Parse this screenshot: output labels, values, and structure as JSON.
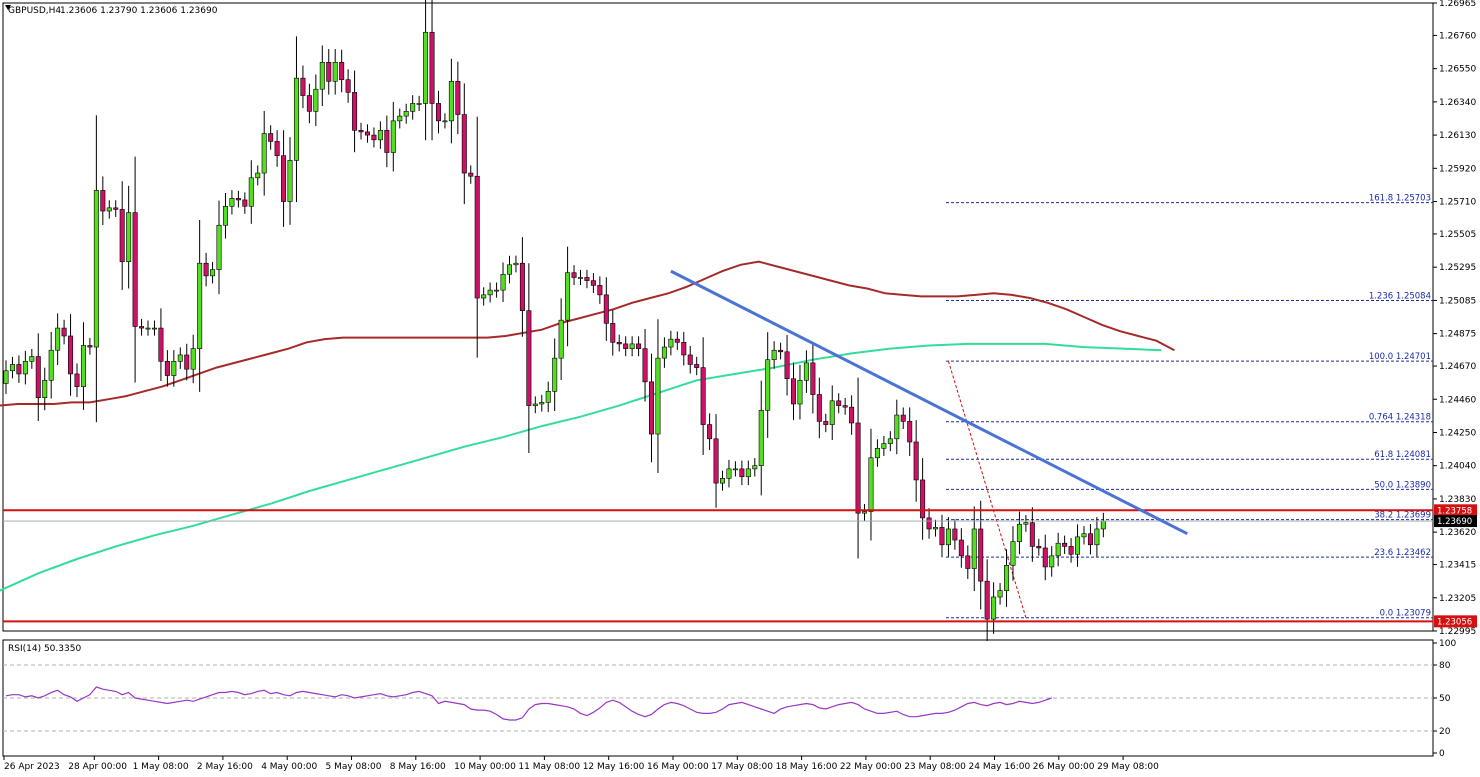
{
  "header": {
    "symbol": "GBPUSD,H4",
    "ohlc": "1.23606 1.23790 1.23606 1.23690",
    "rsi": "RSI(14) 50.3350"
  },
  "colors": {
    "bull": "#55dd22",
    "bear": "#cc1166",
    "ma_red": "#a52a2a",
    "ma_green": "#33dd99",
    "trendline": "#4a73d6",
    "support": "#d41010",
    "fib": "#1f2d9e",
    "rsi": "#9a37c4"
  },
  "chart_data": {
    "type": "candlestick",
    "price_axis": {
      "min": 1.22995,
      "max": 1.26965,
      "ticks": [
        "1.26965",
        "1.26760",
        "1.26550",
        "1.26340",
        "1.26130",
        "1.25920",
        "1.25710",
        "1.25505",
        "1.25295",
        "1.25085",
        "1.24875",
        "1.24670",
        "1.24460",
        "1.24250",
        "1.24040",
        "1.23830",
        "1.23620",
        "1.23415",
        "1.23205",
        "1.22995"
      ]
    },
    "time_axis": {
      "labels": [
        "26 Apr 2023",
        "28 Apr 00:00",
        "1 May 08:00",
        "2 May 16:00",
        "4 May 00:00",
        "5 May 08:00",
        "8 May 16:00",
        "10 May 00:00",
        "11 May 08:00",
        "12 May 16:00",
        "16 May 00:00",
        "17 May 08:00",
        "18 May 16:00",
        "22 May 00:00",
        "23 May 08:00",
        "24 May 16:00",
        "26 May 00:00",
        "29 May 08:00"
      ]
    },
    "candles_close": [
      1.2464,
      1.2468,
      1.2462,
      1.247,
      1.2473,
      1.2447,
      1.2458,
      1.2477,
      1.2491,
      1.2486,
      1.2462,
      1.2454,
      1.248,
      1.2479,
      1.2578,
      1.2565,
      1.2567,
      1.2566,
      1.2533,
      1.2564,
      1.2492,
      1.2491,
      1.2491,
      1.2491,
      1.247,
      1.2461,
      1.247,
      1.2474,
      1.2465,
      1.2478,
      1.2532,
      1.2524,
      1.2528,
      1.2556,
      1.2568,
      1.2573,
      1.2572,
      1.2568,
      1.2586,
      1.2589,
      1.2614,
      1.2609,
      1.26,
      1.2571,
      1.2597,
      1.2649,
      1.2638,
      1.2628,
      1.2642,
      1.2659,
      1.2647,
      1.2659,
      1.2648,
      1.264,
      1.2616,
      1.2615,
      1.2613,
      1.261,
      1.2616,
      1.2602,
      1.2622,
      1.2625,
      1.2628,
      1.2633,
      1.2633,
      1.2678,
      1.2633,
      1.2622,
      1.2622,
      1.2647,
      1.2626,
      1.2589,
      1.2587,
      1.251,
      1.2512,
      1.2515,
      1.2515,
      1.2525,
      1.2531,
      1.2532,
      1.2502,
      1.2442,
      1.2443,
      1.2444,
      1.2451,
      1.2472,
      1.2496,
      1.2526,
      1.2523,
      1.2523,
      1.2521,
      1.2518,
      1.2512,
      1.2494,
      1.2482,
      1.2481,
      1.2478,
      1.2481,
      1.2478,
      1.2457,
      1.2424,
      1.2472,
      1.2479,
      1.2484,
      1.2482,
      1.2474,
      1.2468,
      1.2466,
      1.243,
      1.2421,
      1.2393,
      1.2396,
      1.2402,
      1.2402,
      1.2397,
      1.2402,
      1.2404,
      1.2439,
      1.2471,
      1.2477,
      1.2476,
      1.2459,
      1.2443,
      1.2458,
      1.2469,
      1.2449,
      1.2432,
      1.243,
      1.2445,
      1.2442,
      1.2441,
      1.2431,
      1.2374,
      1.2375,
      1.2409,
      1.2415,
      1.2418,
      1.2421,
      1.2436,
      1.2432,
      1.2419,
      1.2395,
      1.2371,
      1.2364,
      1.2365,
      1.2354,
      1.2364,
      1.2357,
      1.2347,
      1.2339,
      1.2364,
      1.2331,
      1.2307,
      1.2321,
      1.2325,
      1.2341,
      1.2356,
      1.2367,
      1.2368,
      1.2353,
      1.2352,
      1.234,
      1.2347,
      1.2355,
      1.2353,
      1.2348,
      1.2359,
      1.2361,
      1.2354,
      1.2364,
      1.2369
    ],
    "series": [
      {
        "name": "MA 100",
        "values": [
          1.2442,
          1.2443,
          1.2443,
          1.2443,
          1.2444,
          1.2444,
          1.2446,
          1.2448,
          1.2451,
          1.2454,
          1.2458,
          1.2462,
          1.2466,
          1.2469,
          1.2472,
          1.2475,
          1.2478,
          1.2482,
          1.2484,
          1.2485,
          1.2485,
          1.2485,
          1.2485,
          1.2485,
          1.2485,
          1.2485,
          1.2485,
          1.2485,
          1.2486,
          1.2488,
          1.249,
          1.2494,
          1.2497,
          1.25,
          1.2503,
          1.2507,
          1.251,
          1.2513,
          1.2517,
          1.2522,
          1.2527,
          1.2531,
          1.2533,
          1.253,
          1.2527,
          1.2524,
          1.2521,
          1.2518,
          1.2516,
          1.2513,
          1.2512,
          1.2511,
          1.2511,
          1.2511,
          1.2512,
          1.2513,
          1.2512,
          1.251,
          1.2507,
          1.2503,
          1.2498,
          1.2493,
          1.2489,
          1.2486,
          1.2483,
          1.2477
        ]
      },
      {
        "name": "MA 200",
        "values": [
          1.2325,
          1.2336,
          1.2345,
          1.2353,
          1.236,
          1.2366,
          1.2373,
          1.238,
          1.2388,
          1.2395,
          1.2402,
          1.2409,
          1.2416,
          1.2422,
          1.2429,
          1.2435,
          1.2442,
          1.245,
          1.2458,
          1.2462,
          1.2466,
          1.2471,
          1.2475,
          1.2478,
          1.248,
          1.2481,
          1.2481,
          1.2481,
          1.2479,
          1.2478,
          1.2477
        ]
      }
    ],
    "horizontal_levels": [
      {
        "price": 1.23758,
        "label": "1.23758"
      },
      {
        "price": 1.23056,
        "label": "1.23056"
      }
    ],
    "current_price": {
      "price": 1.2369,
      "label": "1.23690"
    },
    "fibonacci": [
      {
        "ratio": "161.8",
        "price": 1.25703,
        "text": "161.8 1.25703"
      },
      {
        "ratio": "1.236",
        "price": 1.25084,
        "text": "1.236 1.25084"
      },
      {
        "ratio": "100.0",
        "price": 1.24701,
        "text": "100.0 1.24701"
      },
      {
        "ratio": "0.764",
        "price": 1.24318,
        "text": "0.764 1.24318"
      },
      {
        "ratio": "61.8",
        "price": 1.24081,
        "text": "61.8 1.24081"
      },
      {
        "ratio": "50.0",
        "price": 1.2389,
        "text": "50.0 1.23890"
      },
      {
        "ratio": "38.2",
        "price": 1.23699,
        "text": "38.2 1.23699"
      },
      {
        "ratio": "23.6",
        "price": 1.23462,
        "text": "23.6 1.23462"
      },
      {
        "ratio": "0.0",
        "price": 1.23079,
        "text": "0.0 1.23079"
      }
    ],
    "trendline": {
      "start": [
        103,
        1.2527
      ],
      "end": [
        183,
        1.2361
      ]
    },
    "rsi": {
      "ticks": [
        "100",
        "80",
        "50",
        "20",
        "0"
      ],
      "levels": [
        20,
        50,
        80
      ],
      "values": [
        52,
        53,
        53,
        51,
        52,
        50,
        52,
        55,
        57,
        53,
        51,
        47,
        50,
        53,
        60,
        58,
        57,
        56,
        53,
        55,
        50,
        49,
        48,
        47,
        46,
        45,
        46,
        47,
        48,
        47,
        49,
        51,
        53,
        55,
        55,
        56,
        55,
        53,
        54,
        56,
        57,
        54,
        55,
        53,
        52,
        55,
        56,
        55,
        54,
        53,
        52,
        51,
        53,
        52,
        50,
        51,
        52,
        53,
        54,
        52,
        51,
        52,
        53,
        55,
        56,
        54,
        52,
        45,
        47,
        46,
        45,
        44,
        40,
        39,
        39,
        38,
        35,
        31,
        30,
        30,
        32,
        40,
        44,
        45,
        45,
        44,
        43,
        42,
        40,
        36,
        34,
        37,
        41,
        46,
        48,
        46,
        42,
        38,
        35,
        33,
        35,
        40,
        44,
        46,
        45,
        43,
        40,
        37,
        36,
        36,
        37,
        40,
        44,
        45,
        46,
        44,
        42,
        40,
        38,
        36,
        40,
        42,
        43,
        44,
        45,
        44,
        41,
        40,
        42,
        44,
        45,
        46,
        44,
        40,
        38,
        36,
        36,
        37,
        38,
        35,
        33,
        33,
        34,
        35,
        36,
        36,
        37,
        39,
        42,
        45,
        46,
        44,
        43,
        45,
        46,
        44,
        45,
        47,
        46,
        45,
        46,
        48,
        50
      ]
    }
  }
}
